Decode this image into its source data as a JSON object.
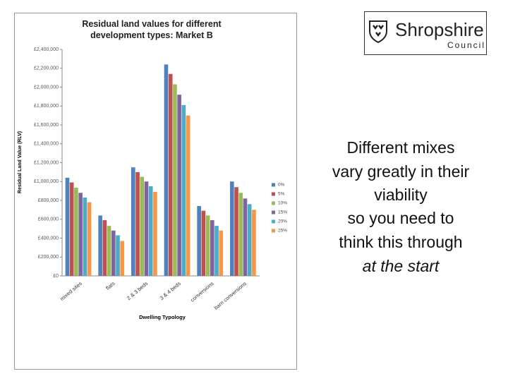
{
  "chart_data": {
    "type": "bar",
    "title": "Residual land values for different development types: Market B",
    "x_label": "Dwelling Typology",
    "y_label": "Residual Land Value (RLV)",
    "categories": [
      "mixed sites",
      "flats",
      "2 & 3 beds",
      "3 & 4 beds",
      "conversions",
      "barn conversions"
    ],
    "series": [
      {
        "name": "0%",
        "color": "#4f81bd",
        "values": [
          1040000,
          640000,
          1150000,
          2240000,
          740000,
          1000000
        ]
      },
      {
        "name": "5%",
        "color": "#c0504d",
        "values": [
          990000,
          590000,
          1100000,
          2140000,
          690000,
          940000
        ]
      },
      {
        "name": "10%",
        "color": "#9bbb59",
        "values": [
          935000,
          530000,
          1050000,
          2030000,
          640000,
          880000
        ]
      },
      {
        "name": "15%",
        "color": "#8064a2",
        "values": [
          880000,
          480000,
          1000000,
          1920000,
          590000,
          820000
        ]
      },
      {
        "name": "20%",
        "color": "#4bacc6",
        "values": [
          830000,
          430000,
          950000,
          1810000,
          530000,
          760000
        ]
      },
      {
        "name": "25%",
        "color": "#f79646",
        "values": [
          780000,
          370000,
          890000,
          1700000,
          480000,
          700000
        ]
      }
    ],
    "ylim": [
      0,
      2400000
    ],
    "yticks": [
      {
        "value": 0,
        "label": "£0"
      },
      {
        "value": 200000,
        "label": "£200,000"
      },
      {
        "value": 400000,
        "label": "£400,000"
      },
      {
        "value": 600000,
        "label": "£600,000"
      },
      {
        "value": 800000,
        "label": "£800,000"
      },
      {
        "value": 1000000,
        "label": "£1,000,000"
      },
      {
        "value": 1200000,
        "label": "£1,200,000"
      },
      {
        "value": 1400000,
        "label": "£1,400,000"
      },
      {
        "value": 1600000,
        "label": "£1,600,000"
      },
      {
        "value": 1800000,
        "label": "£1,800,000"
      },
      {
        "value": 2000000,
        "label": "£2,000,000"
      },
      {
        "value": 2200000,
        "label": "£2,200,000"
      },
      {
        "value": 2400000,
        "label": "£2,400,000"
      }
    ],
    "grid": false,
    "legend": "right"
  },
  "logo": {
    "name": "Shropshire",
    "sub": "Council"
  },
  "slide_text": [
    "Different mixes",
    "vary greatly in their",
    "viability",
    "so you need to",
    "think this through",
    "at the start"
  ]
}
